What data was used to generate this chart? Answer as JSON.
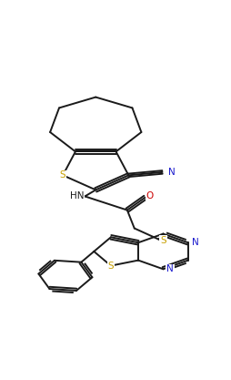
{
  "bg_color": "#ffffff",
  "bond_color": "#1a1a1a",
  "atom_colors": {
    "S": "#c8a000",
    "N": "#1a1acd",
    "O": "#cc0000",
    "C": "#1a1a1a"
  },
  "bond_width": 1.4,
  "figsize": [
    2.55,
    4.17
  ],
  "dpi": 100
}
